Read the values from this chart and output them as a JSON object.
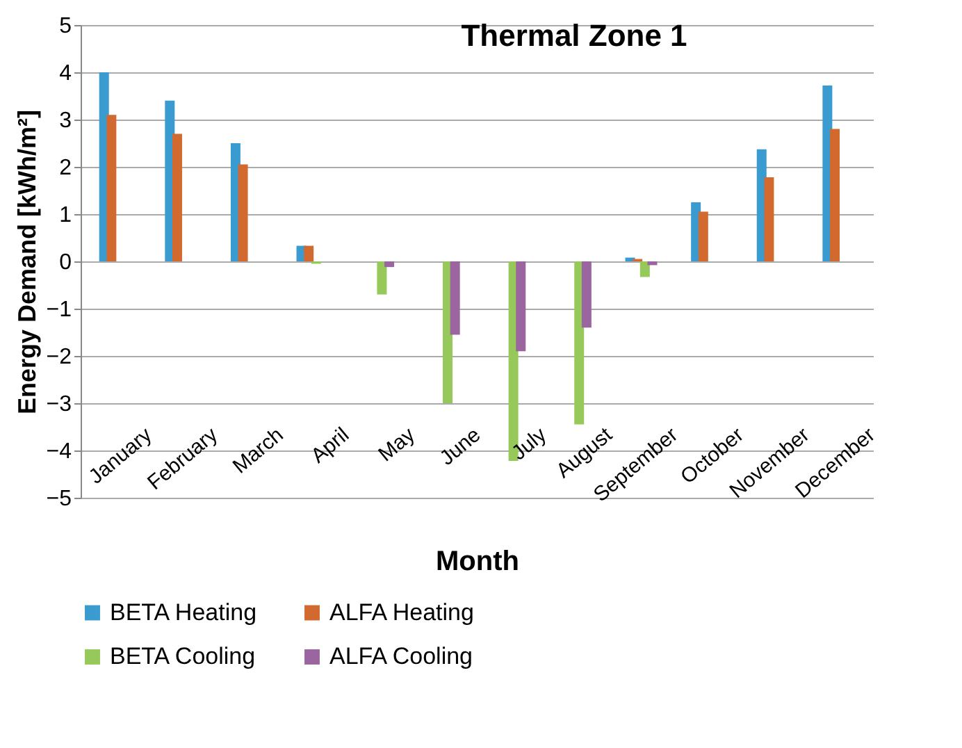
{
  "chart_data": {
    "type": "bar",
    "title": "Thermal Zone 1",
    "xlabel": "Month",
    "ylabel": "Energy Demand  [kWh/m²]",
    "categories": [
      "January",
      "February",
      "March",
      "April",
      "May",
      "June",
      "July",
      "August",
      "September",
      "October",
      "November",
      "December"
    ],
    "series": [
      {
        "name": "BETA Heating",
        "color": "#3a9bd0",
        "values": [
          4.0,
          3.4,
          2.5,
          0.33,
          0,
          0,
          0,
          0,
          0.08,
          1.25,
          2.37,
          3.72
        ]
      },
      {
        "name": "ALFA Heating",
        "color": "#d2692f",
        "values": [
          3.1,
          2.7,
          2.05,
          0.33,
          0,
          0,
          0,
          0,
          0.05,
          1.05,
          1.78,
          2.8
        ]
      },
      {
        "name": "BETA Cooling",
        "color": "#96c95a",
        "values": [
          0,
          0,
          0,
          -0.05,
          -0.7,
          -3.0,
          -4.22,
          -3.45,
          -0.33,
          0,
          0,
          0
        ]
      },
      {
        "name": "ALFA Cooling",
        "color": "#9b66a0",
        "values": [
          0,
          0,
          0,
          0,
          -0.12,
          -1.55,
          -1.9,
          -1.4,
          -0.08,
          0,
          0,
          0
        ]
      }
    ],
    "ylim": [
      -5,
      5
    ],
    "yticks": [
      -5,
      -4,
      -3,
      -2,
      -1,
      0,
      1,
      2,
      3,
      4,
      5
    ],
    "grid": "y",
    "legend": "bottom"
  }
}
